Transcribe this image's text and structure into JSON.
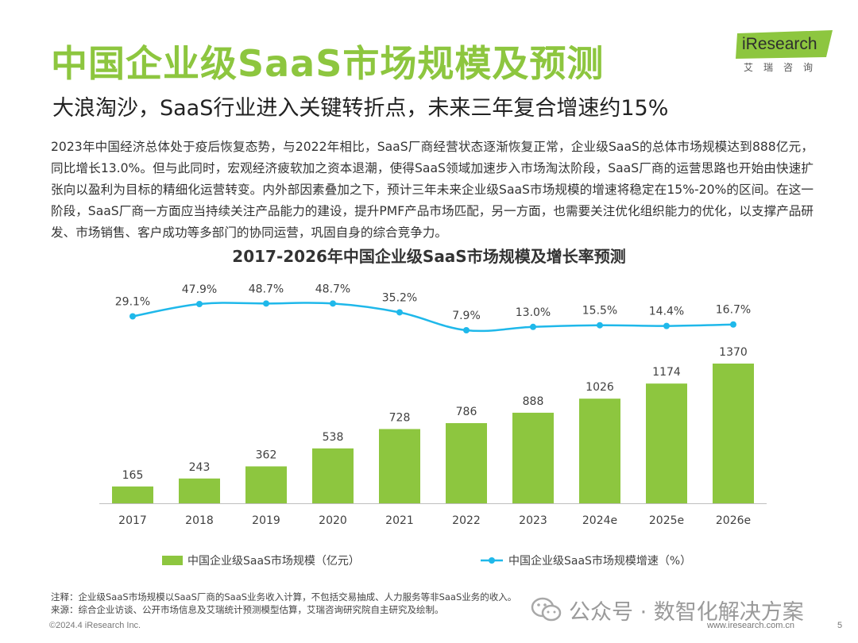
{
  "header": {
    "title": "中国企业级SaaS市场规模及预测",
    "subtitle": "大浪淘沙，SaaS行业进入关键转折点，未来三年复合增速约15%",
    "logo_text": "iResearch",
    "logo_sub": "艾瑞咨询"
  },
  "body_text": "2023年中国经济总体处于疫后恢复态势，与2022年相比，SaaS厂商经营状态逐渐恢复正常，企业级SaaS的总体市场规模达到888亿元，同比增长13.0%。但与此同时，宏观经济疲软加之资本退潮，使得SaaS领域加速步入市场淘汰阶段，SaaS厂商的运营思路也开始由快速扩张向以盈利为目标的精细化运营转变。内外部因素叠加之下，预计三年未来企业级SaaS市场规模的增速将稳定在15%-20%的区间。在这一阶段，SaaS厂商一方面应当持续关注产品能力的建设，提升PMF产品市场匹配，另一方面，也需要关注优化组织能力的优化，以支撑产品研发、市场销售、客户成功等多部门的协同运营，巩固自身的综合竞争力。",
  "chart_data": {
    "type": "bar",
    "title": "2017-2026年中国企业级SaaS市场规模及增长率预测",
    "categories": [
      "2017",
      "2018",
      "2019",
      "2020",
      "2021",
      "2022",
      "2023",
      "2024e",
      "2025e",
      "2026e"
    ],
    "series": [
      {
        "name": "中国企业级SaaS市场规模（亿元）",
        "type": "bar",
        "values": [
          165,
          243,
          362,
          538,
          728,
          786,
          888,
          1026,
          1174,
          1370
        ],
        "labels": [
          "165",
          "243",
          "362",
          "538",
          "728",
          "786",
          "888",
          "1026",
          "1174",
          "1370"
        ],
        "color": "#8dc63f"
      },
      {
        "name": "中国企业级SaaS市场规模增速（%）",
        "type": "line",
        "values": [
          29.1,
          47.9,
          48.7,
          48.7,
          35.2,
          7.9,
          13.0,
          15.5,
          14.4,
          16.7
        ],
        "labels": [
          "29.1%",
          "47.9%",
          "48.7%",
          "48.7%",
          "35.2%",
          "7.9%",
          "13.0%",
          "15.5%",
          "14.4%",
          "16.7%"
        ],
        "color": "#1fb8ea"
      }
    ],
    "legend_position": "bottom",
    "grid": false
  },
  "notes": {
    "note": "注释：企业级SaaS市场规模以SaaS厂商的SaaS业务收入计算，不包括交易抽成、人力服务等非SaaS业务的收入。",
    "source": "来源：综合企业访谈、公开市场信息及艾瑞统计预测模型估算，艾瑞咨询研究院自主研究及绘制。"
  },
  "footer": {
    "copyright": "©2024.4 iResearch Inc.",
    "website": "www.iresearch.com.cn",
    "page_number": "5"
  },
  "watermark": {
    "icon": "wechat-icon",
    "text": "公众号 · 数智化解决方案"
  }
}
